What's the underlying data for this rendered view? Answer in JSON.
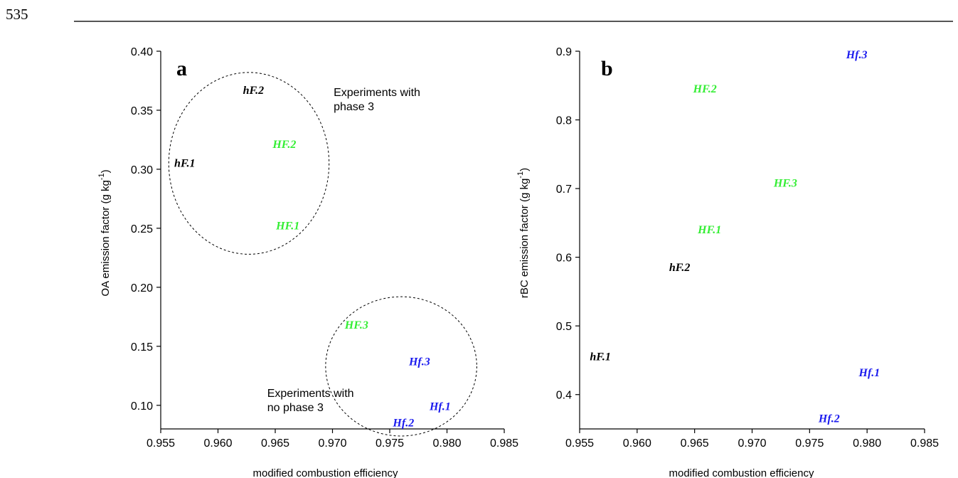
{
  "page": {
    "number": "535"
  },
  "colors": {
    "hF": "#000000",
    "HF": "#33ee33",
    "Hf": "#1a1aee"
  },
  "chart_data": [
    {
      "type": "scatter",
      "panel_label": "a",
      "xlabel": "modified combustion efficiency",
      "ylabel": "OA emission factor (g kg",
      "ylabel_sup": "-1",
      "ylabel_tail": ")",
      "xlim": [
        0.955,
        0.985
      ],
      "ylim": [
        0.08,
        0.4
      ],
      "xticks": [
        "0.955",
        "0.960",
        "0.965",
        "0.970",
        "0.975",
        "0.980",
        "0.985"
      ],
      "yticks": [
        "0.10",
        "0.15",
        "0.20",
        "0.25",
        "0.30",
        "0.35",
        "0.40"
      ],
      "points": [
        {
          "label": "hF.1",
          "group": "hF",
          "x": 0.9571,
          "y": 0.305
        },
        {
          "label": "hF.2",
          "group": "hF",
          "x": 0.9631,
          "y": 0.367
        },
        {
          "label": "HF.1",
          "group": "HF",
          "x": 0.9661,
          "y": 0.252
        },
        {
          "label": "HF.2",
          "group": "HF",
          "x": 0.9658,
          "y": 0.321
        },
        {
          "label": "HF.3",
          "group": "HF",
          "x": 0.9721,
          "y": 0.168
        },
        {
          "label": "Hf.1",
          "group": "Hf",
          "x": 0.9794,
          "y": 0.099
        },
        {
          "label": "Hf.2",
          "group": "Hf",
          "x": 0.9762,
          "y": 0.085
        },
        {
          "label": "Hf.3",
          "group": "Hf",
          "x": 0.9776,
          "y": 0.137
        }
      ],
      "annotations": [
        {
          "lines": [
            "Experiments with",
            "phase 3"
          ],
          "x": 0.9701,
          "y": 0.362
        },
        {
          "lines": [
            "Experiments with",
            "no phase 3"
          ],
          "x": 0.9643,
          "y": 0.107
        }
      ],
      "ellipses": [
        {
          "name": "phase3-group",
          "cx": 0.9627,
          "cy": 0.305,
          "rx": 0.007,
          "ry": 0.077
        },
        {
          "name": "no-phase3-group",
          "cx": 0.976,
          "cy": 0.133,
          "rx": 0.0066,
          "ry": 0.059
        }
      ]
    },
    {
      "type": "scatter",
      "panel_label": "b",
      "xlabel": "modified combustion efficiency",
      "ylabel": "rBC emission factor (g kg",
      "ylabel_sup": "-1",
      "ylabel_tail": ")",
      "xlim": [
        0.955,
        0.985
      ],
      "ylim": [
        0.35,
        0.9
      ],
      "xticks": [
        "0.955",
        "0.960",
        "0.965",
        "0.970",
        "0.975",
        "0.980",
        "0.985"
      ],
      "yticks": [
        "0.4",
        "0.5",
        "0.6",
        "0.7",
        "0.8",
        "0.9"
      ],
      "points": [
        {
          "label": "hF.1",
          "group": "hF",
          "x": 0.9568,
          "y": 0.455
        },
        {
          "label": "hF.2",
          "group": "hF",
          "x": 0.9637,
          "y": 0.585
        },
        {
          "label": "HF.1",
          "group": "HF",
          "x": 0.9663,
          "y": 0.64
        },
        {
          "label": "HF.2",
          "group": "HF",
          "x": 0.9659,
          "y": 0.845
        },
        {
          "label": "HF.3",
          "group": "HF",
          "x": 0.9729,
          "y": 0.708
        },
        {
          "label": "Hf.1",
          "group": "Hf",
          "x": 0.9802,
          "y": 0.432
        },
        {
          "label": "Hf.2",
          "group": "Hf",
          "x": 0.9767,
          "y": 0.365
        },
        {
          "label": "Hf.3",
          "group": "Hf",
          "x": 0.9791,
          "y": 0.895
        }
      ],
      "annotations": [],
      "ellipses": []
    }
  ]
}
